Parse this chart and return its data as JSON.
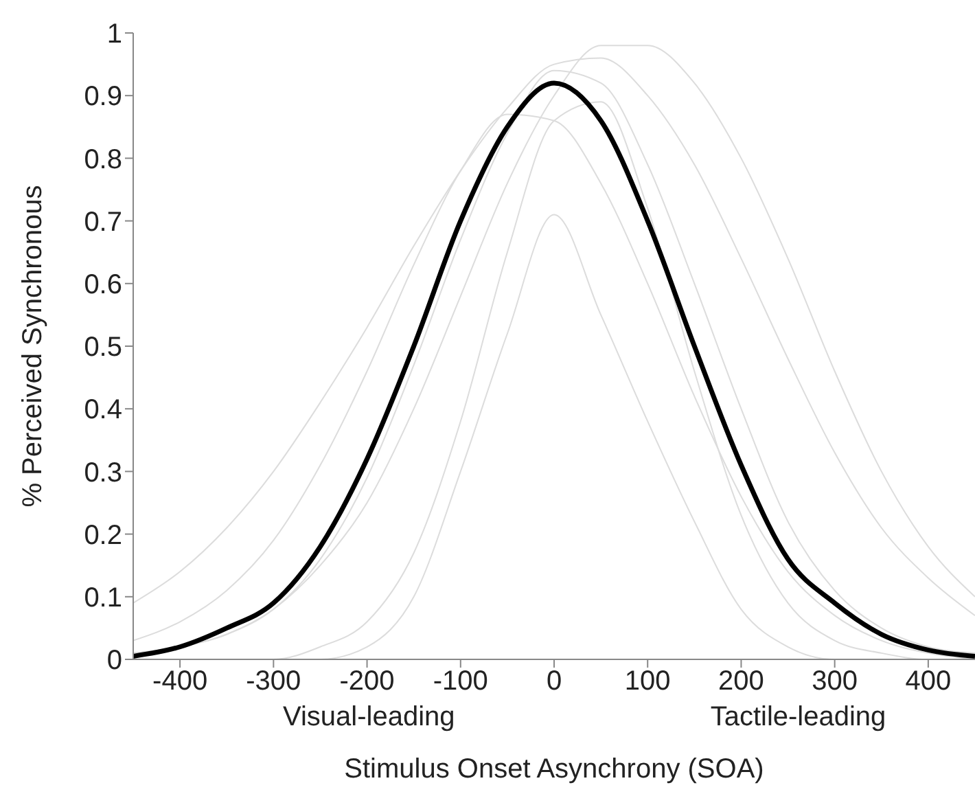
{
  "chart_data": {
    "type": "line",
    "xlabel": "Stimulus Onset Asynchrony (SOA)",
    "ylabel": "% Perceived Synchronous",
    "annotations": [
      "Visual-leading",
      "Tactile-leading"
    ],
    "x": [
      -450,
      -400,
      -350,
      -300,
      -250,
      -200,
      -150,
      -100,
      -50,
      0,
      50,
      100,
      150,
      200,
      250,
      300,
      350,
      400,
      450
    ],
    "series": [
      {
        "color": "#dcdcdc",
        "values": [
          0.09,
          0.14,
          0.21,
          0.3,
          0.41,
          0.53,
          0.66,
          0.78,
          0.88,
          0.95,
          0.96,
          0.9,
          0.79,
          0.64,
          0.48,
          0.33,
          0.21,
          0.13,
          0.07
        ]
      },
      {
        "color": "#dcdcdc",
        "values": [
          0.01,
          0.02,
          0.04,
          0.08,
          0.15,
          0.25,
          0.4,
          0.58,
          0.76,
          0.9,
          0.98,
          0.98,
          0.92,
          0.8,
          0.64,
          0.46,
          0.3,
          0.18,
          0.1
        ]
      },
      {
        "color": "#dcdcdc",
        "values": [
          0,
          0,
          0,
          0,
          0,
          0.02,
          0.1,
          0.3,
          0.52,
          0.71,
          0.55,
          0.38,
          0.22,
          0.08,
          0.02,
          0,
          0,
          0,
          0
        ]
      },
      {
        "color": "#dcdcdc",
        "values": [
          0.03,
          0.06,
          0.11,
          0.19,
          0.31,
          0.46,
          0.63,
          0.78,
          0.87,
          0.86,
          0.76,
          0.6,
          0.42,
          0.26,
          0.14,
          0.07,
          0.03,
          0.01,
          0
        ]
      },
      {
        "color": "#dcdcdc",
        "values": [
          0,
          0,
          0,
          0,
          0.02,
          0.06,
          0.17,
          0.38,
          0.65,
          0.86,
          0.89,
          0.72,
          0.46,
          0.23,
          0.09,
          0.03,
          0.01,
          0,
          0
        ]
      },
      {
        "color": "#dcdcdc",
        "values": [
          0.01,
          0.02,
          0.04,
          0.08,
          0.16,
          0.29,
          0.47,
          0.67,
          0.84,
          0.94,
          0.92,
          0.79,
          0.6,
          0.4,
          0.22,
          0.11,
          0.05,
          0.02,
          0.01
        ]
      },
      {
        "color": "#000000",
        "values": [
          0.005,
          0.02,
          0.05,
          0.09,
          0.18,
          0.32,
          0.5,
          0.7,
          0.85,
          0.92,
          0.86,
          0.7,
          0.5,
          0.31,
          0.16,
          0.09,
          0.04,
          0.015,
          0.005
        ]
      }
    ],
    "xlim": [
      -450,
      450
    ],
    "xticks": [
      -400,
      -300,
      -200,
      -100,
      0,
      100,
      200,
      300,
      400
    ],
    "ylim": [
      0,
      1
    ],
    "yticks": [
      0,
      0.1,
      0.2,
      0.3,
      0.4,
      0.5,
      0.6,
      0.7,
      0.8,
      0.9,
      1
    ],
    "grid": false,
    "marker": "none",
    "line_style": "solid"
  }
}
